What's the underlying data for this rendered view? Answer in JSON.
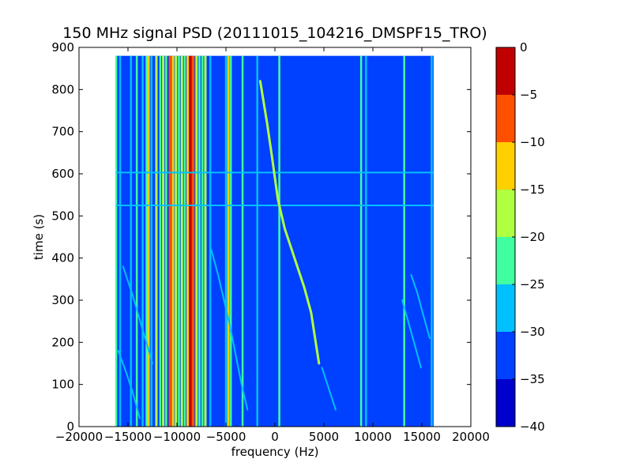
{
  "chart_data": {
    "type": "heatmap",
    "title": "150 MHz signal PSD (20111015_104216_DMSPF15_TRO)",
    "xlabel": "frequency (Hz)",
    "ylabel": "time (s)",
    "xlim": [
      -20000,
      20000
    ],
    "ylim": [
      0,
      900
    ],
    "x_ticks": [
      -20000,
      -15000,
      -10000,
      -5000,
      0,
      5000,
      10000,
      15000,
      20000
    ],
    "x_tick_labels": [
      "−20000",
      "−15000",
      "−10000",
      "−5000",
      "0",
      "5000",
      "10000",
      "15000",
      "20000"
    ],
    "y_ticks": [
      0,
      100,
      200,
      300,
      400,
      500,
      600,
      700,
      800,
      900
    ],
    "y_tick_labels": [
      "0",
      "100",
      "200",
      "300",
      "400",
      "500",
      "600",
      "700",
      "800",
      "900"
    ],
    "data_extent": {
      "x": [
        -16200,
        16200
      ],
      "y": [
        0,
        880
      ]
    },
    "background_level": -35,
    "colorbar": {
      "levels": [
        -40,
        -35,
        -30,
        -25,
        -20,
        -15,
        -10,
        -5,
        0
      ],
      "tick_labels": [
        "−40",
        "−35",
        "−30",
        "−25",
        "−20",
        "−15",
        "−10",
        "−5",
        "0"
      ],
      "colors": [
        "#0000cc",
        "#0040ff",
        "#00c0ff",
        "#40ffa0",
        "#b0ff40",
        "#ffd000",
        "#ff5000",
        "#c00000"
      ]
    },
    "vertical_lines": [
      {
        "f": -16200,
        "level": -25
      },
      {
        "f": -15800,
        "level": -30
      },
      {
        "f": -14700,
        "level": -30
      },
      {
        "f": -14100,
        "level": -25
      },
      {
        "f": -13500,
        "level": -30
      },
      {
        "f": -13100,
        "level": -25
      },
      {
        "f": -12900,
        "level": -15
      },
      {
        "f": -12600,
        "level": -30
      },
      {
        "f": -12100,
        "level": -20
      },
      {
        "f": -11700,
        "level": -25
      },
      {
        "f": -11400,
        "level": -20
      },
      {
        "f": -11100,
        "level": -25
      },
      {
        "f": -10700,
        "level": -10
      },
      {
        "f": -10400,
        "level": -15
      },
      {
        "f": -10100,
        "level": -20
      },
      {
        "f": -9800,
        "level": -25
      },
      {
        "f": -9500,
        "level": -20
      },
      {
        "f": -9200,
        "level": -25
      },
      {
        "f": -8900,
        "level": -15
      },
      {
        "f": -8650,
        "level": -5
      },
      {
        "f": -8350,
        "level": -10
      },
      {
        "f": -8000,
        "level": -20
      },
      {
        "f": -7700,
        "level": -25
      },
      {
        "f": -7400,
        "level": -25
      },
      {
        "f": -7100,
        "level": -20
      },
      {
        "f": -6600,
        "level": -30
      },
      {
        "f": -5000,
        "level": -30
      },
      {
        "f": -4750,
        "level": -15
      },
      {
        "f": -4500,
        "level": -25
      },
      {
        "f": -3300,
        "level": -25
      },
      {
        "f": -1800,
        "level": -30
      },
      {
        "f": 450,
        "level": -25
      },
      {
        "f": 8800,
        "level": -25
      },
      {
        "f": 9300,
        "level": -30
      },
      {
        "f": 13200,
        "level": -25
      },
      {
        "f": 16000,
        "level": -30
      }
    ],
    "horizontal_lines": [
      {
        "t": 525,
        "level": -30
      },
      {
        "t": 603,
        "level": -30
      }
    ],
    "sweep_traces": [
      {
        "name": "",
        "level": -20,
        "points": [
          [
            -1500,
            820
          ],
          [
            -800,
            720
          ],
          [
            -300,
            640
          ],
          [
            300,
            540
          ],
          [
            1000,
            470
          ],
          [
            2000,
            400
          ],
          [
            3000,
            330
          ],
          [
            3700,
            270
          ],
          [
            4100,
            210
          ],
          [
            4500,
            150
          ]
        ]
      },
      {
        "name": "",
        "level": -30,
        "points": [
          [
            -6500,
            420
          ],
          [
            -5800,
            360
          ],
          [
            -5200,
            300
          ],
          [
            -4600,
            240
          ],
          [
            -4000,
            170
          ],
          [
            -3400,
            100
          ],
          [
            -2800,
            40
          ]
        ]
      },
      {
        "name": "",
        "level": -30,
        "points": [
          [
            -16000,
            180
          ],
          [
            -15200,
            130
          ],
          [
            -14500,
            80
          ],
          [
            -13800,
            20
          ]
        ]
      },
      {
        "name": "",
        "level": -30,
        "points": [
          [
            -15500,
            380
          ],
          [
            -14500,
            310
          ],
          [
            -13500,
            230
          ],
          [
            -12500,
            150
          ]
        ]
      },
      {
        "name": "",
        "level": -30,
        "points": [
          [
            13900,
            360
          ],
          [
            14500,
            320
          ],
          [
            15200,
            260
          ],
          [
            15800,
            210
          ]
        ]
      },
      {
        "name": "",
        "level": -30,
        "points": [
          [
            13000,
            300
          ],
          [
            13600,
            250
          ],
          [
            14200,
            200
          ],
          [
            14900,
            140
          ]
        ]
      },
      {
        "name": "",
        "level": -30,
        "points": [
          [
            4800,
            140
          ],
          [
            5500,
            90
          ],
          [
            6200,
            40
          ]
        ]
      }
    ]
  }
}
